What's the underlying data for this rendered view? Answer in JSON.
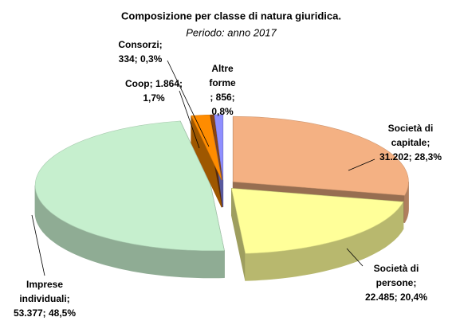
{
  "chart_data": {
    "type": "pie3d",
    "title": "Composizione per classe di natura giuridica.",
    "subtitle": "Periodo: anno 2017",
    "values": [
      31202,
      22485,
      53377,
      1864,
      334,
      856
    ],
    "value_labels": [
      [
        "Società di",
        "capitale;",
        "31.202; 28,3%"
      ],
      [
        "Società di",
        "persone;",
        "22.485; 20,4%"
      ],
      [
        "Imprese",
        "individuali;",
        "53.377; 48,5%"
      ],
      [
        "Coop; 1.864;",
        "1,7%"
      ],
      [
        "Consorzi;",
        "334; 0,3%"
      ],
      [
        "Altre",
        "forme",
        "; 856;",
        "0,8%"
      ]
    ],
    "colors": [
      "#f4b183",
      "#ffff99",
      "#c6efce",
      "#ff8c00",
      "#8b4513",
      "#8f8fff"
    ]
  }
}
